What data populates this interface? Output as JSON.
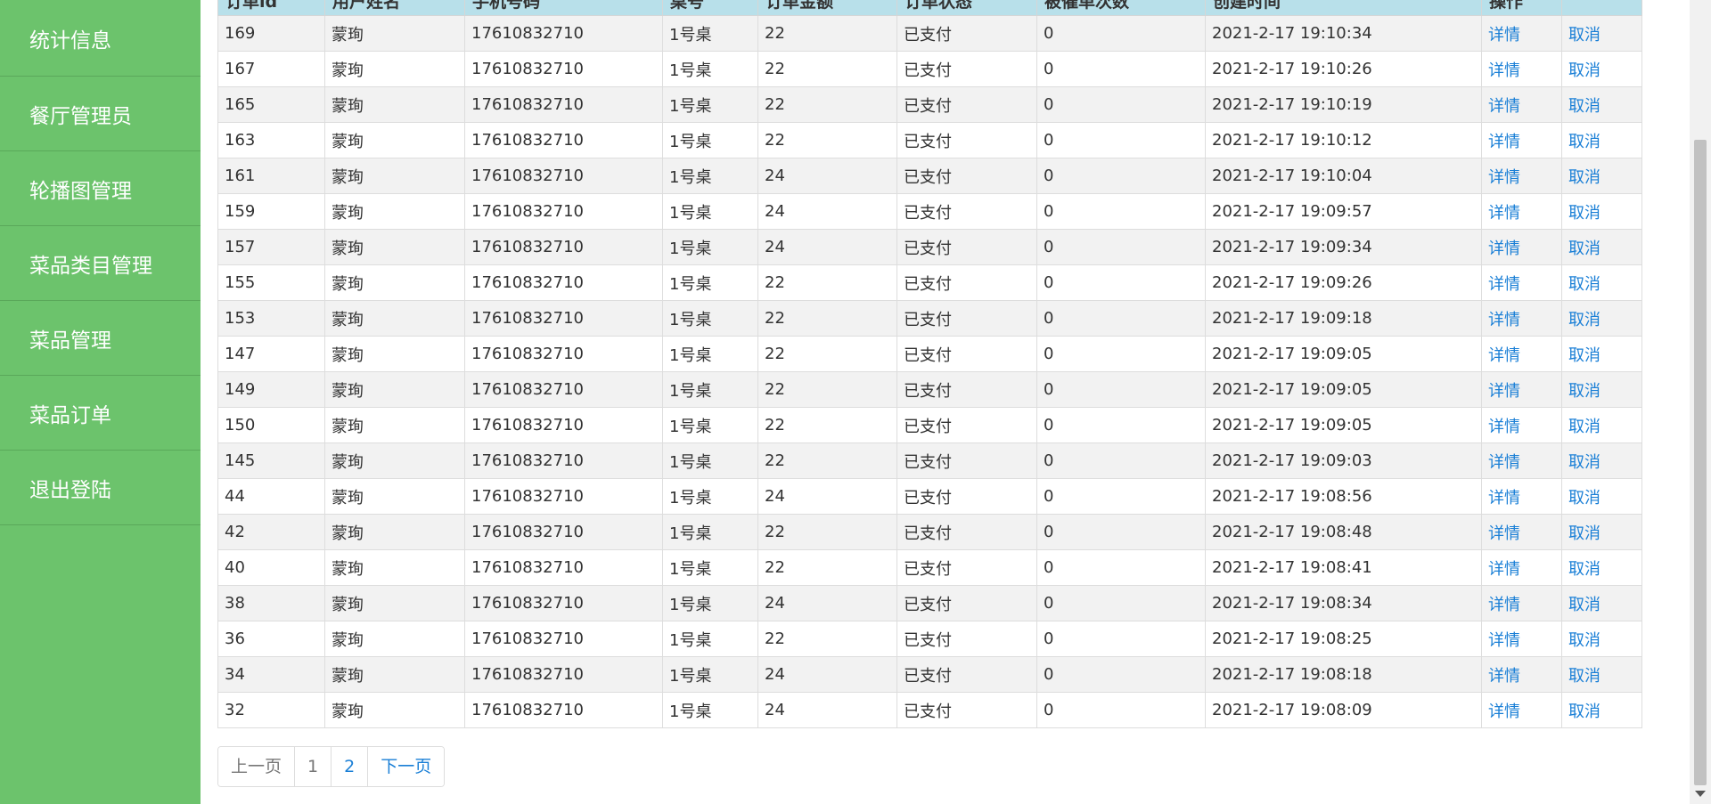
{
  "sidebar": {
    "items": [
      {
        "label": "统计信息"
      },
      {
        "label": "餐厅管理员"
      },
      {
        "label": "轮播图管理"
      },
      {
        "label": "菜品类目管理"
      },
      {
        "label": "菜品管理"
      },
      {
        "label": "菜品订单"
      },
      {
        "label": "退出登陆"
      }
    ]
  },
  "table": {
    "headers": [
      "订单id",
      "用户姓名",
      "手机号码",
      "桌号",
      "订单金额",
      "订单状态",
      "被催单次数",
      "创建时间",
      "操作",
      ""
    ],
    "detail_label": "详情",
    "cancel_label": "取消",
    "rows": [
      {
        "id": "169",
        "name": "蒙珣",
        "phone": "17610832710",
        "table": "1号桌",
        "amount": "22",
        "status": "已支付",
        "urge": "0",
        "time": "2021-2-17 19:10:34"
      },
      {
        "id": "167",
        "name": "蒙珣",
        "phone": "17610832710",
        "table": "1号桌",
        "amount": "22",
        "status": "已支付",
        "urge": "0",
        "time": "2021-2-17 19:10:26"
      },
      {
        "id": "165",
        "name": "蒙珣",
        "phone": "17610832710",
        "table": "1号桌",
        "amount": "22",
        "status": "已支付",
        "urge": "0",
        "time": "2021-2-17 19:10:19"
      },
      {
        "id": "163",
        "name": "蒙珣",
        "phone": "17610832710",
        "table": "1号桌",
        "amount": "22",
        "status": "已支付",
        "urge": "0",
        "time": "2021-2-17 19:10:12"
      },
      {
        "id": "161",
        "name": "蒙珣",
        "phone": "17610832710",
        "table": "1号桌",
        "amount": "24",
        "status": "已支付",
        "urge": "0",
        "time": "2021-2-17 19:10:04"
      },
      {
        "id": "159",
        "name": "蒙珣",
        "phone": "17610832710",
        "table": "1号桌",
        "amount": "24",
        "status": "已支付",
        "urge": "0",
        "time": "2021-2-17 19:09:57"
      },
      {
        "id": "157",
        "name": "蒙珣",
        "phone": "17610832710",
        "table": "1号桌",
        "amount": "24",
        "status": "已支付",
        "urge": "0",
        "time": "2021-2-17 19:09:34"
      },
      {
        "id": "155",
        "name": "蒙珣",
        "phone": "17610832710",
        "table": "1号桌",
        "amount": "22",
        "status": "已支付",
        "urge": "0",
        "time": "2021-2-17 19:09:26"
      },
      {
        "id": "153",
        "name": "蒙珣",
        "phone": "17610832710",
        "table": "1号桌",
        "amount": "22",
        "status": "已支付",
        "urge": "0",
        "time": "2021-2-17 19:09:18"
      },
      {
        "id": "147",
        "name": "蒙珣",
        "phone": "17610832710",
        "table": "1号桌",
        "amount": "22",
        "status": "已支付",
        "urge": "0",
        "time": "2021-2-17 19:09:05"
      },
      {
        "id": "149",
        "name": "蒙珣",
        "phone": "17610832710",
        "table": "1号桌",
        "amount": "22",
        "status": "已支付",
        "urge": "0",
        "time": "2021-2-17 19:09:05"
      },
      {
        "id": "150",
        "name": "蒙珣",
        "phone": "17610832710",
        "table": "1号桌",
        "amount": "22",
        "status": "已支付",
        "urge": "0",
        "time": "2021-2-17 19:09:05"
      },
      {
        "id": "145",
        "name": "蒙珣",
        "phone": "17610832710",
        "table": "1号桌",
        "amount": "22",
        "status": "已支付",
        "urge": "0",
        "time": "2021-2-17 19:09:03"
      },
      {
        "id": "44",
        "name": "蒙珣",
        "phone": "17610832710",
        "table": "1号桌",
        "amount": "24",
        "status": "已支付",
        "urge": "0",
        "time": "2021-2-17 19:08:56"
      },
      {
        "id": "42",
        "name": "蒙珣",
        "phone": "17610832710",
        "table": "1号桌",
        "amount": "22",
        "status": "已支付",
        "urge": "0",
        "time": "2021-2-17 19:08:48"
      },
      {
        "id": "40",
        "name": "蒙珣",
        "phone": "17610832710",
        "table": "1号桌",
        "amount": "22",
        "status": "已支付",
        "urge": "0",
        "time": "2021-2-17 19:08:41"
      },
      {
        "id": "38",
        "name": "蒙珣",
        "phone": "17610832710",
        "table": "1号桌",
        "amount": "24",
        "status": "已支付",
        "urge": "0",
        "time": "2021-2-17 19:08:34"
      },
      {
        "id": "36",
        "name": "蒙珣",
        "phone": "17610832710",
        "table": "1号桌",
        "amount": "22",
        "status": "已支付",
        "urge": "0",
        "time": "2021-2-17 19:08:25"
      },
      {
        "id": "34",
        "name": "蒙珣",
        "phone": "17610832710",
        "table": "1号桌",
        "amount": "24",
        "status": "已支付",
        "urge": "0",
        "time": "2021-2-17 19:08:18"
      },
      {
        "id": "32",
        "name": "蒙珣",
        "phone": "17610832710",
        "table": "1号桌",
        "amount": "24",
        "status": "已支付",
        "urge": "0",
        "time": "2021-2-17 19:08:09"
      }
    ]
  },
  "pagination": {
    "prev_label": "上一页",
    "pages": [
      "1",
      "2"
    ],
    "next_label": "下一页"
  },
  "colors": {
    "sidebar_bg": "#6cc36c",
    "header_bg": "#b8e0ea",
    "link": "#1a7fd6"
  }
}
